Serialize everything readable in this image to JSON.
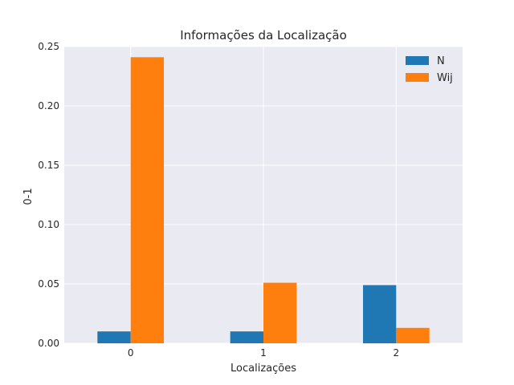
{
  "chart_data": {
    "type": "bar",
    "title": "Informações da Localização",
    "xlabel": "Localizações",
    "ylabel": "0-1",
    "categories": [
      "0",
      "1",
      "2"
    ],
    "series": [
      {
        "name": "N",
        "values": [
          0.01,
          0.01,
          0.049
        ],
        "color": "#1f77b4"
      },
      {
        "name": "Wij",
        "values": [
          0.241,
          0.051,
          0.013
        ],
        "color": "#ff7f0e"
      }
    ],
    "ylim": [
      0,
      0.25
    ],
    "yticks": [
      "0.00",
      "0.05",
      "0.10",
      "0.15",
      "0.20",
      "0.25"
    ],
    "grid": true,
    "legend_position": "top-right",
    "plot_background": "#eaeaf2"
  }
}
